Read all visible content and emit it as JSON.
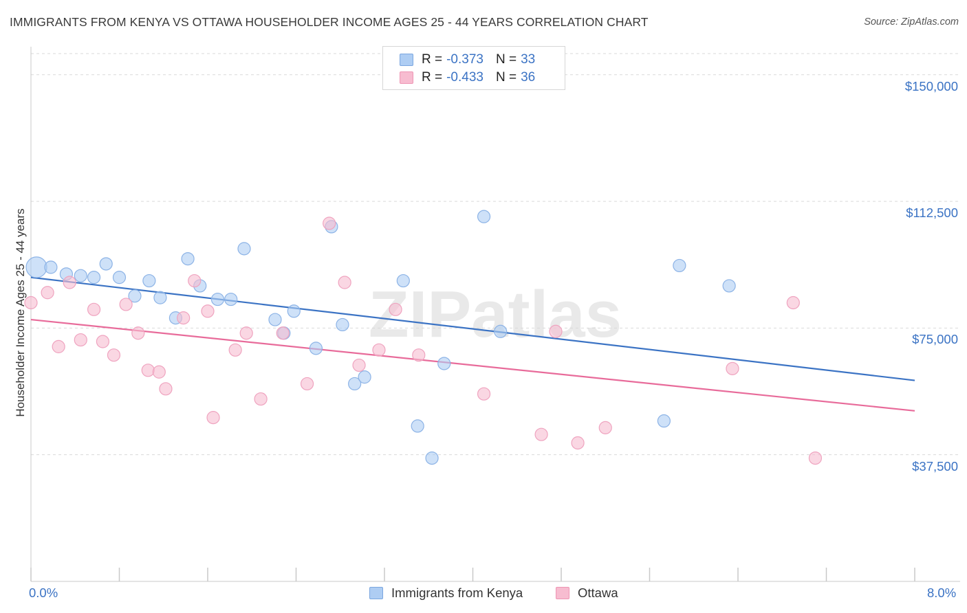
{
  "title": "IMMIGRANTS FROM KENYA VS OTTAWA HOUSEHOLDER INCOME AGES 25 - 44 YEARS CORRELATION CHART",
  "source": "Source: ZipAtlas.com",
  "colors": {
    "blue": "#3b73c4",
    "blue_fill": "#aecdf3",
    "pink": "#e86b9a",
    "pink_fill": "#f7bcd0",
    "grid": "#d9d9d9",
    "axis_text": "#3b73c4"
  },
  "legend": {
    "rows": [
      {
        "r_label": "R =",
        "r_value": "-0.373",
        "n_label": "N =",
        "n_value": "33"
      },
      {
        "r_label": "R =",
        "r_value": "-0.433",
        "n_label": "N =",
        "n_value": "36"
      }
    ]
  },
  "bottom_legend": {
    "series1": "Immigrants from Kenya",
    "series2": "Ottawa"
  },
  "watermark": "ZIPatlas",
  "chart_data": {
    "type": "scatter",
    "title": "IMMIGRANTS FROM KENYA VS OTTAWA HOUSEHOLDER INCOME AGES 25 - 44 YEARS CORRELATION CHART",
    "xlabel": "",
    "ylabel": "Householder Income Ages 25 - 44 years",
    "xlim": [
      0,
      8.0
    ],
    "ylim": [
      0,
      156250
    ],
    "x_tick_labels": [
      "0.0%",
      "8.0%"
    ],
    "y_ticks": [
      37500,
      75000,
      112500,
      150000
    ],
    "y_tick_labels": [
      "$37,500",
      "$75,000",
      "$112,500",
      "$150,000"
    ],
    "grid": true,
    "legend_position": "top-center",
    "series": [
      {
        "name": "Immigrants from Kenya",
        "color": "#3b73c4",
        "r": -0.373,
        "n": 33,
        "points": [
          {
            "x": 0.05,
            "y": 93000,
            "big": true
          },
          {
            "x": 0.18,
            "y": 93000
          },
          {
            "x": 0.32,
            "y": 91000
          },
          {
            "x": 0.45,
            "y": 90500
          },
          {
            "x": 0.57,
            "y": 90000
          },
          {
            "x": 0.68,
            "y": 94000
          },
          {
            "x": 0.8,
            "y": 90000
          },
          {
            "x": 0.94,
            "y": 84500
          },
          {
            "x": 1.07,
            "y": 89000
          },
          {
            "x": 1.17,
            "y": 84000
          },
          {
            "x": 1.31,
            "y": 78000
          },
          {
            "x": 1.42,
            "y": 95500
          },
          {
            "x": 1.53,
            "y": 87500
          },
          {
            "x": 1.69,
            "y": 83500
          },
          {
            "x": 1.81,
            "y": 83500
          },
          {
            "x": 1.93,
            "y": 98500
          },
          {
            "x": 2.21,
            "y": 77500
          },
          {
            "x": 2.29,
            "y": 73500
          },
          {
            "x": 2.38,
            "y": 80000
          },
          {
            "x": 2.58,
            "y": 69000
          },
          {
            "x": 2.72,
            "y": 105000
          },
          {
            "x": 2.82,
            "y": 76000
          },
          {
            "x": 2.93,
            "y": 58500
          },
          {
            "x": 3.02,
            "y": 60500
          },
          {
            "x": 3.37,
            "y": 89000
          },
          {
            "x": 3.5,
            "y": 46000
          },
          {
            "x": 3.63,
            "y": 36500
          },
          {
            "x": 3.74,
            "y": 64500
          },
          {
            "x": 4.1,
            "y": 108000
          },
          {
            "x": 4.25,
            "y": 74000
          },
          {
            "x": 5.73,
            "y": 47500
          },
          {
            "x": 5.87,
            "y": 93500
          },
          {
            "x": 6.32,
            "y": 87500
          }
        ],
        "trend": {
          "x": [
            0.0,
            8.0
          ],
          "y": [
            90000,
            59500
          ]
        }
      },
      {
        "name": "Ottawa",
        "color": "#e86b9a",
        "r": -0.433,
        "n": 36,
        "points": [
          {
            "x": 0.0,
            "y": 82500
          },
          {
            "x": 0.15,
            "y": 85500
          },
          {
            "x": 0.25,
            "y": 69500
          },
          {
            "x": 0.35,
            "y": 88500
          },
          {
            "x": 0.45,
            "y": 71500
          },
          {
            "x": 0.57,
            "y": 80500
          },
          {
            "x": 0.65,
            "y": 71000
          },
          {
            "x": 0.75,
            "y": 67000
          },
          {
            "x": 0.86,
            "y": 82000
          },
          {
            "x": 0.97,
            "y": 73500
          },
          {
            "x": 1.06,
            "y": 62500
          },
          {
            "x": 1.16,
            "y": 62000
          },
          {
            "x": 1.22,
            "y": 57000
          },
          {
            "x": 1.38,
            "y": 78000
          },
          {
            "x": 1.48,
            "y": 89000
          },
          {
            "x": 1.6,
            "y": 80000
          },
          {
            "x": 1.65,
            "y": 48500
          },
          {
            "x": 1.85,
            "y": 68500
          },
          {
            "x": 1.95,
            "y": 73500
          },
          {
            "x": 2.08,
            "y": 54000
          },
          {
            "x": 2.28,
            "y": 73500
          },
          {
            "x": 2.5,
            "y": 58500
          },
          {
            "x": 2.7,
            "y": 106000
          },
          {
            "x": 2.84,
            "y": 88500
          },
          {
            "x": 2.97,
            "y": 64000
          },
          {
            "x": 3.15,
            "y": 68500
          },
          {
            "x": 3.3,
            "y": 80500
          },
          {
            "x": 3.51,
            "y": 67000
          },
          {
            "x": 4.1,
            "y": 55500
          },
          {
            "x": 4.62,
            "y": 43500
          },
          {
            "x": 4.75,
            "y": 74000
          },
          {
            "x": 4.95,
            "y": 41000
          },
          {
            "x": 5.2,
            "y": 45500
          },
          {
            "x": 6.35,
            "y": 63000
          },
          {
            "x": 6.9,
            "y": 82500
          },
          {
            "x": 7.1,
            "y": 36500
          }
        ],
        "trend": {
          "x": [
            0.0,
            8.0
          ],
          "y": [
            77500,
            50500
          ]
        }
      }
    ]
  }
}
